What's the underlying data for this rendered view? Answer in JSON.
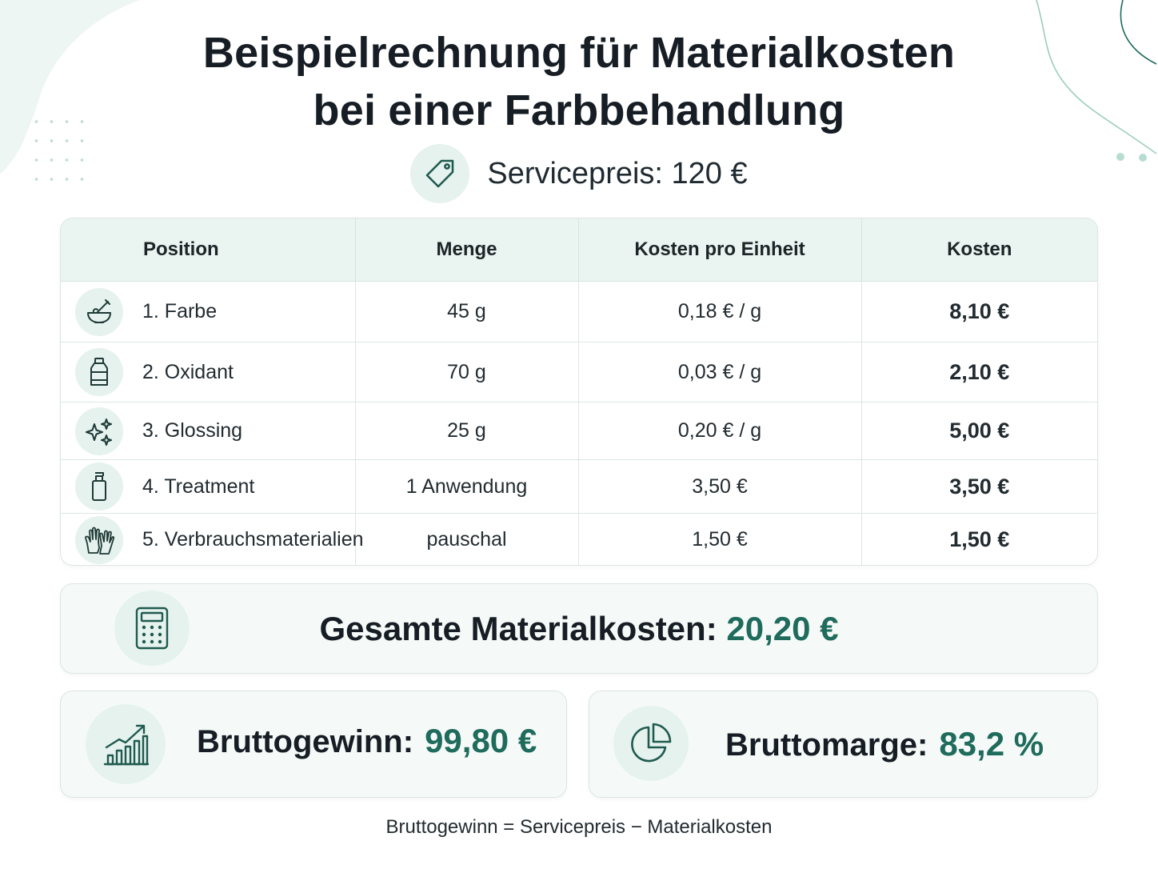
{
  "title_line1": "Beispielrechnung für Materialkosten",
  "title_line2": "bei einer Farbbehandlung",
  "service": {
    "label": "Servicepreis: 120 €",
    "icon": "price-tag-icon"
  },
  "table": {
    "headers": [
      "Position",
      "Menge",
      "Kosten pro Einheit",
      "Kosten"
    ],
    "rows": [
      {
        "icon": "color-bowl-brush-icon",
        "position": "1. Farbe",
        "menge": "45 g",
        "unit_cost": "0,18 € / g",
        "kosten": "8,10 €"
      },
      {
        "icon": "bottle-icon",
        "position": "2. Oxidant",
        "menge": "70 g",
        "unit_cost": "0,03 € / g",
        "kosten": "2,10 €"
      },
      {
        "icon": "sparkles-icon",
        "position": "3. Glossing",
        "menge": "25 g",
        "unit_cost": "0,20 € / g",
        "kosten": "5,00 €"
      },
      {
        "icon": "pump-bottle-icon",
        "position": "4. Treatment",
        "menge": "1 Anwendung",
        "unit_cost": "3,50 €",
        "kosten": "3,50 €"
      },
      {
        "icon": "gloves-icon",
        "position": "5. Verbrauchsmaterialien",
        "menge": "pauschal",
        "unit_cost": "1,50 €",
        "kosten": "1,50 €"
      }
    ]
  },
  "total": {
    "label": "Gesamte Materialkosten:",
    "value": "20,20 €",
    "icon": "calculator-icon"
  },
  "profit": {
    "label": "Bruttogewinn:",
    "value": "99,80 €",
    "icon": "growth-chart-icon"
  },
  "margin": {
    "label": "Bruttomarge:",
    "value": "83,2 %",
    "icon": "pie-chart-icon"
  },
  "formula": "Bruttogewinn = Servicepreis − Materialkosten",
  "colors": {
    "accent": "#1f6b5c",
    "soft_green": "#e6f2ee",
    "header_bg": "#eaf4f0"
  }
}
